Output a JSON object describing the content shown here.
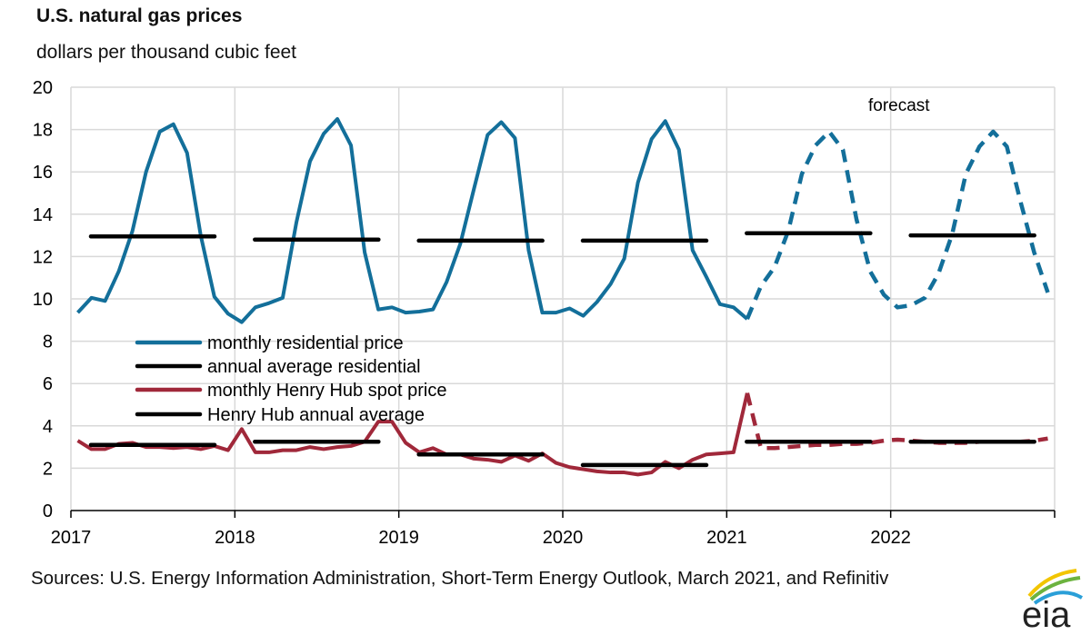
{
  "chart_data": {
    "type": "line",
    "title": "U.S. natural gas prices",
    "subtitle": "dollars per thousand cubic feet",
    "ylim": [
      0,
      20
    ],
    "yticks": [
      "0",
      "2",
      "4",
      "6",
      "8",
      "10",
      "12",
      "14",
      "16",
      "18",
      "20"
    ],
    "xlim": [
      "2017-01",
      "2022-12"
    ],
    "xticks": [
      "2017",
      "2018",
      "2019",
      "2020",
      "2021",
      "2022"
    ],
    "grid": true,
    "legend_position": "left-middle",
    "annotation": "forecast",
    "forecast_start": "2021-02",
    "months": [
      "2017-01",
      "2017-02",
      "2017-03",
      "2017-04",
      "2017-05",
      "2017-06",
      "2017-07",
      "2017-08",
      "2017-09",
      "2017-10",
      "2017-11",
      "2017-12",
      "2018-01",
      "2018-02",
      "2018-03",
      "2018-04",
      "2018-05",
      "2018-06",
      "2018-07",
      "2018-08",
      "2018-09",
      "2018-10",
      "2018-11",
      "2018-12",
      "2019-01",
      "2019-02",
      "2019-03",
      "2019-04",
      "2019-05",
      "2019-06",
      "2019-07",
      "2019-08",
      "2019-09",
      "2019-10",
      "2019-11",
      "2019-12",
      "2020-01",
      "2020-02",
      "2020-03",
      "2020-04",
      "2020-05",
      "2020-06",
      "2020-07",
      "2020-08",
      "2020-09",
      "2020-10",
      "2020-11",
      "2020-12",
      "2021-01",
      "2021-02",
      "2021-03",
      "2021-04",
      "2021-05",
      "2021-06",
      "2021-07",
      "2021-08",
      "2021-09",
      "2021-10",
      "2021-11",
      "2021-12",
      "2022-01",
      "2022-02",
      "2022-03",
      "2022-04",
      "2022-05",
      "2022-06",
      "2022-07",
      "2022-08",
      "2022-09",
      "2022-10",
      "2022-11",
      "2022-12"
    ],
    "series": [
      {
        "name": "monthly residential price",
        "color": "#136f9a",
        "kind": "monthly",
        "values": [
          9.35,
          10.05,
          9.9,
          11.3,
          13.2,
          16.0,
          17.9,
          18.25,
          16.9,
          13.0,
          10.1,
          9.3,
          8.9,
          9.6,
          9.8,
          10.05,
          13.6,
          16.5,
          17.8,
          18.5,
          17.25,
          12.2,
          9.5,
          9.6,
          9.35,
          9.4,
          9.5,
          10.8,
          12.6,
          15.2,
          17.75,
          18.35,
          17.6,
          12.3,
          9.35,
          9.35,
          9.55,
          9.2,
          9.85,
          10.7,
          11.9,
          15.5,
          17.55,
          18.4,
          17.05,
          12.3,
          11.05,
          9.75,
          9.6,
          9.05,
          10.6,
          11.5,
          13.2,
          15.9,
          17.25,
          17.9,
          17.05,
          13.75,
          11.3,
          10.2,
          9.6,
          9.7,
          10.05,
          11.2,
          13.05,
          15.9,
          17.2,
          17.9,
          17.2,
          14.6,
          12.2,
          10.3
        ]
      },
      {
        "name": "annual average residential",
        "color": "#000000",
        "kind": "annual",
        "values": [
          12.95,
          12.8,
          12.75,
          12.75,
          13.1,
          13.0
        ]
      },
      {
        "name": "monthly Henry Hub spot price",
        "color": "#a0283a",
        "kind": "monthly",
        "values": [
          3.3,
          2.9,
          2.9,
          3.15,
          3.2,
          3.0,
          3.0,
          2.95,
          3.0,
          2.9,
          3.05,
          2.85,
          3.85,
          2.75,
          2.75,
          2.85,
          2.85,
          3.0,
          2.9,
          3.0,
          3.05,
          3.25,
          4.2,
          4.2,
          3.2,
          2.75,
          2.95,
          2.65,
          2.65,
          2.45,
          2.4,
          2.3,
          2.6,
          2.35,
          2.7,
          2.25,
          2.05,
          1.95,
          1.85,
          1.8,
          1.8,
          1.7,
          1.8,
          2.3,
          2.0,
          2.4,
          2.65,
          2.7,
          2.75,
          5.55,
          2.95,
          2.95,
          3.0,
          3.05,
          3.1,
          3.1,
          3.15,
          3.15,
          3.2,
          3.3,
          3.35,
          3.3,
          3.25,
          3.2,
          3.2,
          3.2,
          3.25,
          3.25,
          3.25,
          3.25,
          3.3,
          3.4
        ]
      },
      {
        "name": "Henry Hub annual average",
        "color": "#000000",
        "kind": "annual",
        "values": [
          3.1,
          3.25,
          2.65,
          2.15,
          3.25,
          3.25
        ]
      }
    ]
  },
  "sources": "Sources: U.S. Energy Information Administration, Short-Term Energy Outlook, March 2021, and Refinitiv",
  "logo": {
    "text": "eia",
    "colors": [
      "#f2c500",
      "#6cb33f",
      "#2a9fd8"
    ]
  }
}
